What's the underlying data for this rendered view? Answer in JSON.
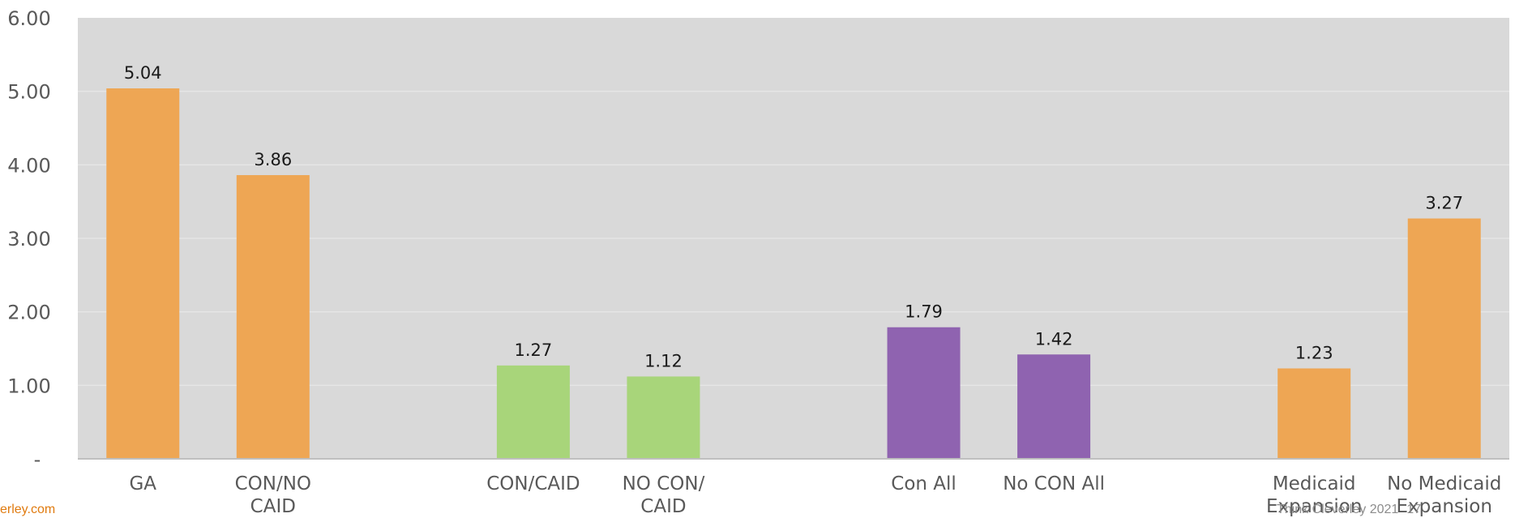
{
  "chart_data": {
    "type": "bar",
    "title": "",
    "xlabel": "",
    "ylabel": "",
    "ylim": [
      0,
      6
    ],
    "y_ticks": [
      {
        "value": 0,
        "label": "-"
      },
      {
        "value": 1,
        "label": "1.00"
      },
      {
        "value": 2,
        "label": "2.00"
      },
      {
        "value": 3,
        "label": "3.00"
      },
      {
        "value": 4,
        "label": "4.00"
      },
      {
        "value": 5,
        "label": "5.00"
      },
      {
        "value": 6,
        "label": "6.00"
      }
    ],
    "grid": true,
    "legend": "none",
    "categories": [
      "GA",
      "CON/NO CAID",
      "",
      "CON/CAID",
      "NO CON/ CAID",
      "",
      "Con All",
      "No CON All",
      "",
      "Medicaid Expansion",
      "No Medicaid Expansion"
    ],
    "category_lines": [
      [
        "GA"
      ],
      [
        "CON/NO",
        "CAID"
      ],
      [],
      [
        "CON/CAID"
      ],
      [
        "NO CON/",
        "CAID"
      ],
      [],
      [
        "Con All"
      ],
      [
        "No CON All"
      ],
      [],
      [
        "Medicaid",
        "Expansion"
      ],
      [
        "No Medicaid",
        "Expansion"
      ]
    ],
    "values": [
      5.04,
      3.86,
      null,
      1.27,
      1.12,
      null,
      1.79,
      1.42,
      null,
      1.23,
      3.27
    ],
    "data_labels": [
      "5.04",
      "3.86",
      "",
      "1.27",
      "1.12",
      "",
      "1.79",
      "1.42",
      "",
      "1.23",
      "3.27"
    ],
    "bar_colors": [
      "#eea654",
      "#eea654",
      "",
      "#a8d57a",
      "#a8d57a",
      "",
      "#8f63b0",
      "#8f63b0",
      "",
      "#eea654",
      "#eea654"
    ],
    "plot_background": "#d9d9d9",
    "gridline_color": "#e6e6e6"
  },
  "footer": {
    "left_text": "erley.com",
    "right_text": "Think Cleverley 2021",
    "page_number": "17"
  }
}
